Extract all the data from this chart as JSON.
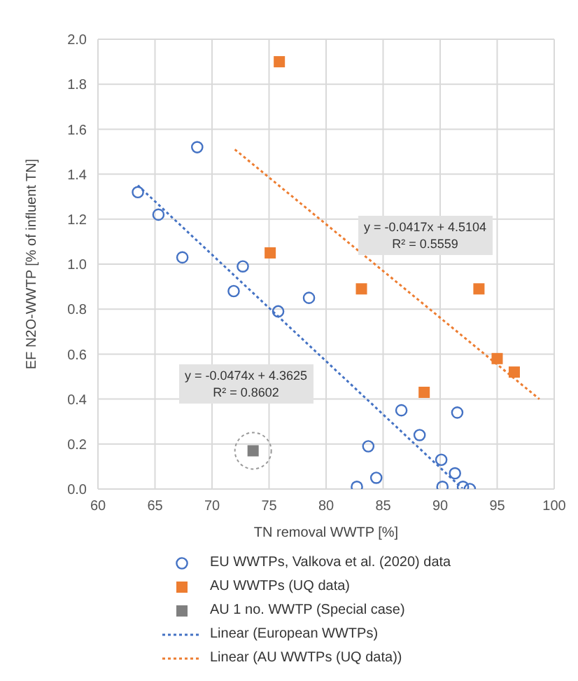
{
  "chart_data": {
    "type": "scatter",
    "xlabel": "TN removal WWTP [%]",
    "ylabel": "EF N2O-WWTP [% of influent TN]",
    "xlim": [
      60,
      100
    ],
    "xticks": [
      60,
      65,
      70,
      75,
      80,
      85,
      90,
      95,
      100
    ],
    "ylim": [
      0,
      2
    ],
    "yticks": [
      {
        "value": 0,
        "label": "0.0"
      },
      {
        "value": 0.2,
        "label": "0.2"
      },
      {
        "value": 0.4,
        "label": "0.4"
      },
      {
        "value": 0.6,
        "label": "0.6"
      },
      {
        "value": 0.8,
        "label": "0.8"
      },
      {
        "value": 1,
        "label": "1.0"
      },
      {
        "value": 1.2,
        "label": "1.2"
      },
      {
        "value": 1.4,
        "label": "1.4"
      },
      {
        "value": 1.6,
        "label": "1.6"
      },
      {
        "value": 1.8,
        "label": "1.8"
      },
      {
        "value": 2,
        "label": "2.0"
      }
    ],
    "grid": true,
    "legend": "bottom",
    "series": [
      {
        "name": "EU WWTPs, Valkova et al. (2020) data",
        "type": "scatter",
        "marker": "circle",
        "color": "#4472c4",
        "x": [
          63.5,
          65.3,
          68.7,
          67.4,
          72.7,
          71.9,
          75.8,
          78.5,
          86.6,
          83.7,
          88.2,
          91.5,
          90.1,
          91.3,
          84.4,
          82.7,
          90.2,
          92.0,
          92.6
        ],
        "values": [
          1.32,
          1.22,
          1.52,
          1.03,
          0.99,
          0.88,
          0.79,
          0.85,
          0.35,
          0.19,
          0.24,
          0.34,
          0.13,
          0.07,
          0.05,
          0.01,
          0.01,
          0.01,
          0.0
        ]
      },
      {
        "name": "AU WWTPs (UQ data)",
        "type": "scatter",
        "marker": "square",
        "color": "#ed7d31",
        "x": [
          75.9,
          75.1,
          83.1,
          93.4,
          95.0,
          96.5,
          88.6
        ],
        "values": [
          1.9,
          1.05,
          0.89,
          0.89,
          0.58,
          0.52,
          0.43
        ]
      },
      {
        "name": "AU 1 no. WWTP (Special case)",
        "type": "scatter",
        "marker": "square",
        "color": "#7f7f7f",
        "x": [
          73.6
        ],
        "values": [
          0.17
        ]
      },
      {
        "name": "Linear (European WWTPs)",
        "type": "line",
        "line_style": "dotted",
        "color": "#4472c4",
        "x": [
          63.5,
          92
        ],
        "values": [
          1.35,
          0.0
        ]
      },
      {
        "name": "Linear (AU WWTPs (UQ data))",
        "type": "line",
        "line_style": "dotted",
        "color": "#ed7d31",
        "x": [
          72,
          98.7
        ],
        "values": [
          1.51,
          0.4
        ]
      }
    ],
    "annotations": [
      "y = -0.0417x + 4.5104\nR² = 0.5559",
      "y = -0.0474x + 4.3625\nR² = 0.8602"
    ]
  }
}
